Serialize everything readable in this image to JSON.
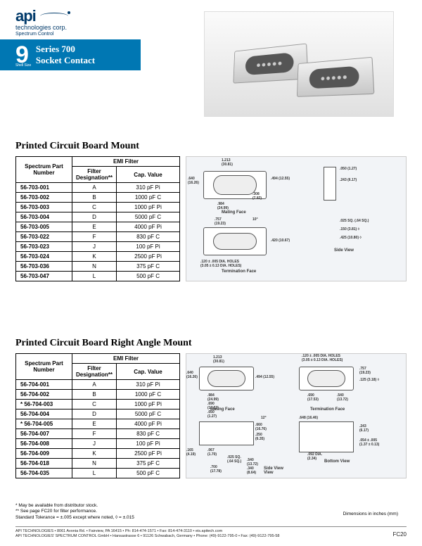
{
  "logo": {
    "brand": "api",
    "subtitle": "technologies corp.",
    "division": "Spectrum Control"
  },
  "titleBlock": {
    "shellSize": "9",
    "shellLabel": "Shell Size",
    "line1": "Series 700",
    "line2": "Socket Contact"
  },
  "section1": {
    "title": "Printed Circuit Board Mount",
    "headers": {
      "pn": "Spectrum Part Number",
      "emi": "EMI Filter",
      "filterDes": "Filter Designation**",
      "cap": "Cap. Value"
    },
    "rows": [
      {
        "pn": "56-703-001",
        "des": "A",
        "cap": "310 pF Pi"
      },
      {
        "pn": "56-703-002",
        "des": "B",
        "cap": "1000 pF C"
      },
      {
        "pn": "56-703-003",
        "des": "C",
        "cap": "1000 pF Pi"
      },
      {
        "pn": "56-703-004",
        "des": "D",
        "cap": "5000 pF C"
      },
      {
        "pn": "56-703-005",
        "des": "E",
        "cap": "4000 pF Pi"
      },
      {
        "pn": "56-703-022",
        "des": "F",
        "cap": "830 pF C"
      },
      {
        "pn": "56-703-023",
        "des": "J",
        "cap": "100 pF Pi"
      },
      {
        "pn": "56-703-024",
        "des": "K",
        "cap": "2500 pF Pi"
      },
      {
        "pn": "56-703-036",
        "des": "N",
        "cap": "375 pF C"
      },
      {
        "pn": "56-703-047",
        "des": "L",
        "cap": "500 pF C"
      }
    ],
    "diagram": {
      "d1": "1.213",
      "d1m": "(30.81)",
      "d2": ".640",
      "d2m": "(16.26)",
      "d3": ".984",
      "d3m": "(24.99)",
      "d4": ".494",
      "d4m": "(12.55)",
      "d5": ".308",
      "d5m": "(7.82)",
      "d6": ".050",
      "d6m": "(1.27)",
      "d7": ".243",
      "d7m": "(6.17)",
      "d8": ".757",
      "d8m": "(19.23)",
      "d9": "10°",
      "d10": ".420",
      "d10m": "(10.67)",
      "d11": ".025 SQ.",
      "d11m": "(.64 SQ.)",
      "d12": ".150",
      "d12m": "(3.81) ◊",
      "d13": ".425",
      "d13m": "(10.80) ◊",
      "holes": ".120 ± .005 DIA. HOLES",
      "holesm": "(3.05 ± 0.13 DIA. HOLES)",
      "mating": "Mating Face",
      "side": "Side View",
      "term": "Termination Face"
    }
  },
  "section2": {
    "title": "Printed Circuit Board Right Angle Mount",
    "headers": {
      "pn": "Spectrum Part Number",
      "emi": "EMI Filter",
      "filterDes": "Filter Designation**",
      "cap": "Cap. Value"
    },
    "rows": [
      {
        "pn": "56-704-001",
        "des": "A",
        "cap": "310 pF Pi",
        "star": false
      },
      {
        "pn": "56-704-002",
        "des": "B",
        "cap": "1000 pF C",
        "star": false
      },
      {
        "pn": "56-704-003",
        "des": "C",
        "cap": "1000 pF Pi",
        "star": true
      },
      {
        "pn": "56-704-004",
        "des": "D",
        "cap": "5000 pF C",
        "star": false
      },
      {
        "pn": "56-704-005",
        "des": "E",
        "cap": "4000 pF Pi",
        "star": true
      },
      {
        "pn": "56-704-007",
        "des": "F",
        "cap": "830 pF C",
        "star": false
      },
      {
        "pn": "56-704-008",
        "des": "J",
        "cap": "100 pF Pi",
        "star": false
      },
      {
        "pn": "56-704-009",
        "des": "K",
        "cap": "2500 pF Pi",
        "star": false
      },
      {
        "pn": "56-704-018",
        "des": "N",
        "cap": "375 pF C",
        "star": false
      },
      {
        "pn": "56-704-035",
        "des": "L",
        "cap": "500 pF C",
        "star": false
      }
    ],
    "diagram": {
      "d1": "1.213",
      "d1m": "(30.81)",
      "d2": ".640",
      "d2m": "(16.26)",
      "d3": ".494",
      "d3m": "(12.55)",
      "d4": ".984",
      "d4m": "(24.99)",
      "d5": ".690",
      "d5m": "(17.53)",
      "d6": ".050",
      "d6m": "(1.27)",
      "d7": ".757",
      "d7m": "(19.23)",
      "d8": ".125",
      "d8m": "(3.18) ◊",
      "d9": ".690",
      "d9m": "(17.53)",
      "d10": ".540",
      "d10m": "(13.72)",
      "holes": ".120 ± .005 DIA. HOLES",
      "holesm": "(3.05 ± 0.13 DIA. HOLES)",
      "d11": ".660",
      "d11m": "(16.76)",
      "d12": ".250",
      "d12m": "(6.35)",
      "d13": ".648",
      "d13m": "(16.46)",
      "d14": ".243",
      "d14m": "(6.17)",
      "d15": ".165",
      "d15m": "(4.19)",
      "d16": ".067",
      "d16m": "(1.70)",
      "d17": ".540",
      "d17m": "(13.72)",
      "d18": ".340",
      "d18m": "(8.64)",
      "d19": ".700",
      "d19m": "(17.78)",
      "d20": ".025 SQ.",
      "d20m": "(.64 SQ.)",
      "d21": ".054 ± .005",
      "d21m": "(1.37 ± 0.13)",
      "d22": "12°",
      "d23": ".092 DIA.",
      "d23m": "(2.34)",
      "mating": "Mating Face",
      "side": "Side View",
      "term": "Termination Face",
      "bottom": "Bottom View"
    }
  },
  "footnotes": {
    "l1": "*  May be available from distributor stock.",
    "l2": "** See page FC20 for filter performance.",
    "l3": "   Standard Tolerance = ±.005 except where noted, ◊ = ±.015"
  },
  "dimsNote": "Dimensions in inches (mm)",
  "footer": {
    "l1": "API TECHNOLOGIES • 8061 Avonia Rd. • Fairview, PA 16415 • Ph: 814-474-1571 • Fax: 814-474-3110 • eis.apitech.com",
    "l2": "API TECHNOLOGIES' SPECTRUM CONTROL GmbH • Hansastrasse 6 • 91126 Schwabach, Germany • Phone: (49)-9122-795-0 • Fax: (49)-9122-795-58"
  },
  "pageNum": "FC20"
}
